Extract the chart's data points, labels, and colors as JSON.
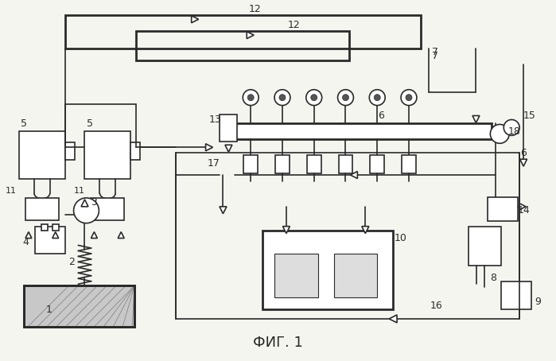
{
  "title": "ФИГ. 1",
  "bg_color": "#f5f5f0",
  "line_color": "#2a2a2a",
  "figsize": [
    6.99,
    4.54
  ],
  "dpi": 100
}
